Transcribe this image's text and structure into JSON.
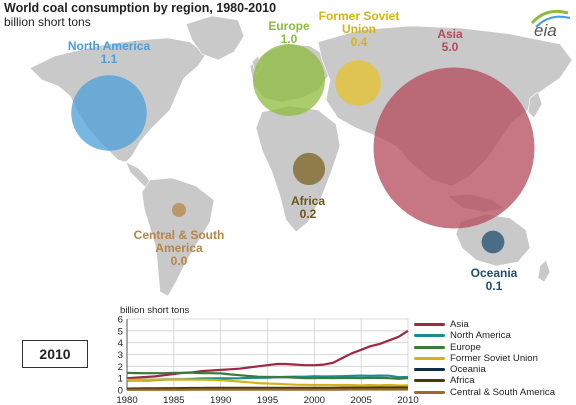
{
  "header": {
    "title": "World coal consumption by region, 1980-2010",
    "subtitle": "billion short tons",
    "logo_text": "eia"
  },
  "map": {
    "year": "2010",
    "regions": [
      {
        "name": "North America",
        "value": "1.1",
        "amount": 1.1,
        "color": "#4a9fd8"
      },
      {
        "name": "Europe",
        "value": "1.0",
        "amount": 1.0,
        "color": "#8dbb3c"
      },
      {
        "name": "Former Soviet Union",
        "line1": "Former Soviet",
        "line2": "Union",
        "value": "0.4",
        "amount": 0.4,
        "color": "#e6c12a"
      },
      {
        "name": "Asia",
        "value": "5.0",
        "amount": 5.0,
        "color": "#b44a5a"
      },
      {
        "name": "Africa",
        "value": "0.2",
        "amount": 0.2,
        "color": "#7a6220"
      },
      {
        "name": "Central & South America",
        "line1": "Central & South",
        "line2": "America",
        "value": "0.0",
        "amount": 0.0,
        "color": "#b98545"
      },
      {
        "name": "Oceania",
        "value": "0.1",
        "amount": 0.1,
        "color": "#1f4e6e"
      }
    ]
  },
  "chart_data": {
    "type": "line",
    "title": "World coal consumption by region, 1980-2010",
    "ylabel": "billion short tons",
    "xlim": [
      1980,
      2010
    ],
    "ylim": [
      0,
      6
    ],
    "x_ticks": [
      1980,
      1985,
      1990,
      1995,
      2000,
      2005,
      2010
    ],
    "y_ticks": [
      0,
      1,
      2,
      3,
      4,
      5,
      6
    ],
    "grid": true,
    "legend_position": "right",
    "x": [
      1980,
      1981,
      1982,
      1983,
      1984,
      1985,
      1986,
      1987,
      1988,
      1989,
      1990,
      1991,
      1992,
      1993,
      1994,
      1995,
      1996,
      1997,
      1998,
      1999,
      2000,
      2001,
      2002,
      2003,
      2004,
      2005,
      2006,
      2007,
      2008,
      2009,
      2010
    ],
    "series": [
      {
        "name": "Asia",
        "color": "#9c2a43",
        "values": [
          1.0,
          1.05,
          1.1,
          1.15,
          1.25,
          1.35,
          1.45,
          1.5,
          1.6,
          1.65,
          1.7,
          1.75,
          1.8,
          1.9,
          2.0,
          2.1,
          2.2,
          2.2,
          2.15,
          2.1,
          2.1,
          2.15,
          2.3,
          2.7,
          3.1,
          3.4,
          3.7,
          3.9,
          4.2,
          4.5,
          5.0
        ]
      },
      {
        "name": "North America",
        "color": "#1f8a94",
        "values": [
          0.8,
          0.82,
          0.8,
          0.83,
          0.88,
          0.9,
          0.9,
          0.93,
          0.97,
          0.98,
          0.98,
          0.98,
          0.99,
          1.02,
          1.03,
          1.04,
          1.08,
          1.11,
          1.12,
          1.12,
          1.17,
          1.14,
          1.15,
          1.17,
          1.2,
          1.22,
          1.2,
          1.22,
          1.21,
          1.08,
          1.1
        ]
      },
      {
        "name": "Europe",
        "color": "#3a7a3a",
        "values": [
          1.45,
          1.43,
          1.42,
          1.42,
          1.42,
          1.45,
          1.45,
          1.45,
          1.42,
          1.42,
          1.4,
          1.32,
          1.25,
          1.18,
          1.12,
          1.1,
          1.1,
          1.08,
          1.05,
          1.0,
          1.0,
          1.02,
          1.0,
          1.03,
          1.02,
          1.0,
          1.02,
          1.03,
          1.0,
          0.95,
          1.0
        ]
      },
      {
        "name": "Former Soviet Union",
        "color": "#d4b415",
        "values": [
          0.85,
          0.85,
          0.85,
          0.86,
          0.87,
          0.88,
          0.88,
          0.88,
          0.87,
          0.85,
          0.82,
          0.78,
          0.72,
          0.65,
          0.58,
          0.55,
          0.52,
          0.48,
          0.45,
          0.44,
          0.42,
          0.42,
          0.41,
          0.42,
          0.41,
          0.4,
          0.41,
          0.4,
          0.42,
          0.38,
          0.4
        ]
      },
      {
        "name": "Oceania",
        "color": "#0f2d44",
        "values": [
          0.08,
          0.08,
          0.08,
          0.09,
          0.09,
          0.09,
          0.1,
          0.1,
          0.1,
          0.1,
          0.1,
          0.1,
          0.11,
          0.11,
          0.11,
          0.11,
          0.12,
          0.12,
          0.13,
          0.13,
          0.13,
          0.14,
          0.14,
          0.14,
          0.15,
          0.15,
          0.15,
          0.15,
          0.15,
          0.15,
          0.14
        ]
      },
      {
        "name": "Africa",
        "color": "#4a3a0a",
        "values": [
          0.12,
          0.13,
          0.14,
          0.14,
          0.15,
          0.15,
          0.16,
          0.17,
          0.17,
          0.18,
          0.18,
          0.18,
          0.18,
          0.18,
          0.19,
          0.19,
          0.19,
          0.19,
          0.19,
          0.19,
          0.19,
          0.19,
          0.19,
          0.2,
          0.2,
          0.2,
          0.2,
          0.21,
          0.21,
          0.21,
          0.21
        ]
      },
      {
        "name": "Central & South America",
        "color": "#9a6a2a",
        "values": [
          0.02,
          0.02,
          0.02,
          0.02,
          0.02,
          0.02,
          0.02,
          0.03,
          0.03,
          0.03,
          0.03,
          0.03,
          0.03,
          0.03,
          0.03,
          0.03,
          0.03,
          0.03,
          0.03,
          0.03,
          0.03,
          0.03,
          0.03,
          0.03,
          0.04,
          0.04,
          0.04,
          0.04,
          0.04,
          0.04,
          0.04
        ]
      }
    ]
  }
}
